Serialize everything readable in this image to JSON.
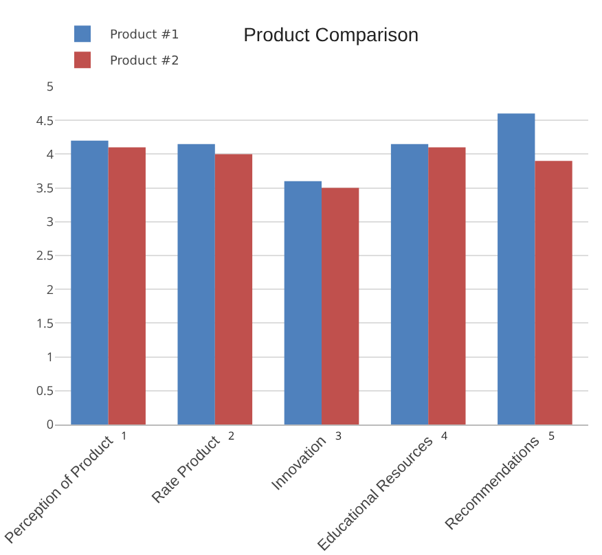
{
  "chart_data": {
    "type": "bar",
    "title": "Product Comparison",
    "categories": [
      "Perception of Product",
      "Rate Product",
      "Innovation",
      "Educational Resources",
      "Recommendations"
    ],
    "series": [
      {
        "name": "Product #1",
        "color": "#4f81bd",
        "values": [
          4.2,
          4.15,
          3.6,
          4.15,
          4.6
        ]
      },
      {
        "name": "Product #2",
        "color": "#c0504d",
        "values": [
          4.1,
          4.0,
          3.5,
          4.1,
          3.9
        ]
      }
    ],
    "ylim": [
      0,
      5
    ],
    "yticks": [
      0,
      0.5,
      1,
      1.5,
      2,
      2.5,
      3,
      3.5,
      4,
      4.5,
      5
    ],
    "grid": "y",
    "legend": "top left",
    "annotations": [
      {
        "text": "1",
        "x": "Perception of Product",
        "y": 0
      },
      {
        "text": "2",
        "x": "Rate Product",
        "y": 0
      },
      {
        "text": "3",
        "x": "Innovation",
        "y": 0
      },
      {
        "text": "4",
        "x": "Educational Resources",
        "y": 0
      },
      {
        "text": "5",
        "x": "Recommendations",
        "y": 0
      }
    ]
  }
}
